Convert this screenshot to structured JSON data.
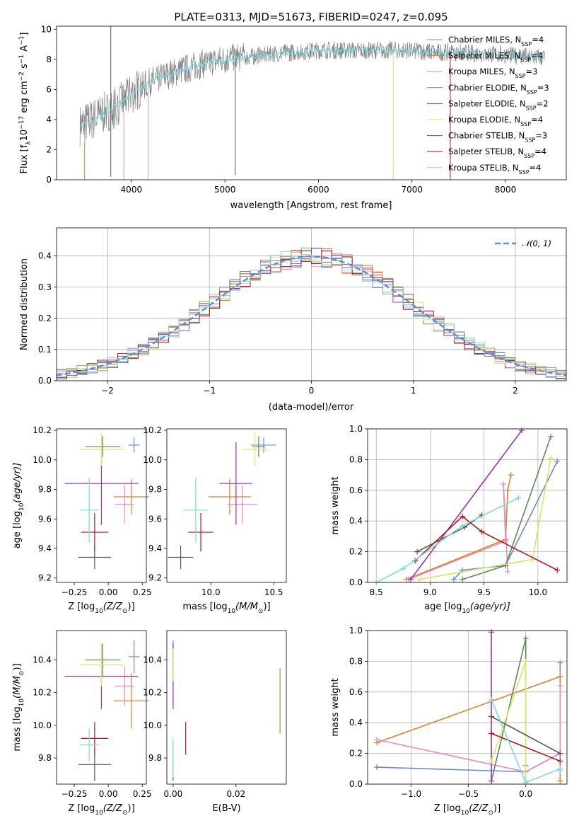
{
  "title": "PLATE=0313, MJD=51673, FIBERID=0247, z=0.095",
  "colors": {
    "series": [
      "#6a8bd6",
      "#e07f2c",
      "#e88bb8",
      "#5a8a5a",
      "#9a2fb0",
      "#d4e85a",
      "#555555",
      "#b01a1a",
      "#7fd9e0"
    ],
    "spectrum": "#808080",
    "gauss": "#5f8ed6",
    "grid": "#b0b0b0"
  },
  "legend_top": [
    {
      "label": "Chabrier MILES, N",
      "sub": "SSP",
      "suffix": "=4"
    },
    {
      "label": "Salpeter MILES, N",
      "sub": "SSP",
      "suffix": "=4"
    },
    {
      "label": "Kroupa MILES, N",
      "sub": "SSP",
      "suffix": "=3"
    },
    {
      "label": "Chabrier ELODIE, N",
      "sub": "SSP",
      "suffix": "=3"
    },
    {
      "label": "Salpeter ELODIE, N",
      "sub": "SSP",
      "suffix": "=2"
    },
    {
      "label": "Kroupa ELODIE, N",
      "sub": "SSP",
      "suffix": "=4"
    },
    {
      "label": "Chabrier STELIB, N",
      "sub": "SSP",
      "suffix": "=3"
    },
    {
      "label": "Salpeter STELIB, N",
      "sub": "SSP",
      "suffix": "=4"
    },
    {
      "label": "Kroupa STELIB, N",
      "sub": "SSP",
      "suffix": "=4"
    }
  ],
  "legend_mid": "𝒩(0, 1)",
  "chart_data": [
    {
      "id": "spectrum",
      "type": "line",
      "xlabel": "wavelength [Angstrom, rest frame]",
      "ylabel_parts": [
        "Flux [f",
        "λ",
        "10",
        "−17",
        " erg cm",
        "−2",
        " s",
        "−1",
        " A",
        "−1",
        "]"
      ],
      "xlim": [
        3200,
        8650
      ],
      "ylim": [
        0,
        10.2
      ],
      "xticks": [
        4000,
        5000,
        6000,
        7000,
        8000
      ],
      "yticks": [
        0,
        2,
        4,
        6,
        8,
        10
      ],
      "continuum_x": [
        3450,
        3550,
        3700,
        3850,
        4000,
        4200,
        4400,
        4700,
        5000,
        5300,
        5600,
        6000,
        6400,
        6800,
        7200,
        7600,
        8000,
        8400
      ],
      "continuum_y": [
        3.6,
        3.9,
        4.4,
        4.9,
        5.7,
        6.5,
        7.0,
        7.6,
        8.0,
        8.2,
        8.4,
        8.6,
        8.6,
        8.6,
        8.5,
        8.4,
        8.3,
        8.1
      ]
    },
    {
      "id": "residuals",
      "type": "histogram",
      "xlabel": "(data-model)/error",
      "ylabel": "Normed distribution",
      "xlim": [
        -2.5,
        2.5
      ],
      "ylim": [
        0,
        0.49
      ],
      "xticks": [
        -2,
        -1,
        0,
        1,
        2
      ],
      "yticks": [
        0.0,
        0.1,
        0.2,
        0.3,
        0.4
      ],
      "bin_width": 0.1,
      "series": "normal(0,1) with ±0.04 scatter"
    },
    {
      "id": "age_vs_Z",
      "type": "errorbar",
      "xlabel_parts": [
        "Z [log",
        "10",
        "(Z/Z",
        "⊙",
        ")]"
      ],
      "ylabel_parts": [
        "age  [log",
        "10",
        "(age/yr)]"
      ],
      "xlim": [
        -0.38,
        0.28
      ],
      "ylim": [
        9.17,
        10.21
      ],
      "xticks": [
        -0.25,
        0.0,
        0.25
      ],
      "yticks": [
        9.2,
        9.4,
        9.6,
        9.8,
        10.0,
        10.2
      ],
      "points": [
        {
          "c": 0,
          "x": 0.19,
          "xe": 0.04,
          "y": 10.1,
          "ye": 0.05
        },
        {
          "c": 1,
          "x": 0.17,
          "xe": 0.13,
          "y": 9.75,
          "ye": 0.12
        },
        {
          "c": 2,
          "x": 0.12,
          "xe": 0.07,
          "y": 9.7,
          "ye": 0.13
        },
        {
          "c": 3,
          "x": -0.04,
          "xe": 0.13,
          "y": 10.09,
          "ye": 0.07
        },
        {
          "c": 4,
          "x": -0.05,
          "xe": 0.27,
          "y": 9.84,
          "ye": 0.28
        },
        {
          "c": 5,
          "x": -0.05,
          "xe": 0.16,
          "y": 10.07,
          "ye": 0.11
        },
        {
          "c": 6,
          "x": -0.1,
          "xe": 0.12,
          "y": 9.34,
          "ye": 0.08
        },
        {
          "c": 7,
          "x": -0.1,
          "xe": 0.1,
          "y": 9.51,
          "ye": 0.13
        },
        {
          "c": 8,
          "x": -0.14,
          "xe": 0.07,
          "y": 9.66,
          "ye": 0.22
        }
      ]
    },
    {
      "id": "age_vs_mass",
      "type": "errorbar",
      "xlabel_parts": [
        "mass [log",
        "10",
        "(M/M",
        "⊙",
        ")]"
      ],
      "xlim": [
        9.65,
        10.6
      ],
      "ylim": [
        9.17,
        10.21
      ],
      "xticks": [
        10.0,
        10.5
      ],
      "yticks": [
        9.2,
        9.4,
        9.6,
        9.8,
        10.0,
        10.2
      ],
      "points": [
        {
          "c": 0,
          "x": 10.42,
          "xe": 0.1,
          "y": 10.1,
          "ye": 0.05
        },
        {
          "c": 1,
          "x": 10.15,
          "xe": 0.17,
          "y": 9.75,
          "ye": 0.12
        },
        {
          "c": 2,
          "x": 10.25,
          "xe": 0.12,
          "y": 9.7,
          "ye": 0.13
        },
        {
          "c": 3,
          "x": 10.38,
          "xe": 0.05,
          "y": 10.09,
          "ye": 0.07
        },
        {
          "c": 4,
          "x": 10.2,
          "xe": 0.13,
          "y": 9.84,
          "ye": 0.28
        },
        {
          "c": 5,
          "x": 10.35,
          "xe": 0.1,
          "y": 10.07,
          "ye": 0.11
        },
        {
          "c": 6,
          "x": 9.76,
          "xe": 0.1,
          "y": 9.34,
          "ye": 0.08
        },
        {
          "c": 7,
          "x": 9.92,
          "xe": 0.1,
          "y": 9.51,
          "ye": 0.13
        },
        {
          "c": 8,
          "x": 9.88,
          "xe": 0.1,
          "y": 9.66,
          "ye": 0.22
        }
      ]
    },
    {
      "id": "weight_vs_age",
      "type": "line",
      "xlabel_parts": [
        "age  [log",
        "10",
        "(age/yr)]"
      ],
      "ylabel": "mass weight",
      "xlim": [
        8.42,
        10.27
      ],
      "ylim": [
        0,
        1
      ],
      "xticks": [
        8.5,
        9.0,
        9.5,
        10.0
      ],
      "yticks": [
        0.0,
        0.2,
        0.4,
        0.6,
        0.8,
        1.0
      ],
      "series": [
        {
          "c": 0,
          "x": [
            9.22,
            9.3,
            9.7,
            10.18
          ],
          "y": [
            0.02,
            0.08,
            0.11,
            0.79
          ]
        },
        {
          "c": 1,
          "x": [
            8.78,
            9.7,
            9.72,
            9.75
          ],
          "y": [
            0.02,
            0.28,
            0.6,
            0.7
          ]
        },
        {
          "c": 2,
          "x": [
            8.8,
            9.7,
            9.68,
            9.72
          ],
          "y": [
            0.02,
            0.27,
            0.64,
            0.07
          ]
        },
        {
          "c": 3,
          "x": [
            9.3,
            9.7,
            10.12
          ],
          "y": [
            0.02,
            0.11,
            0.95
          ]
        },
        {
          "c": 4,
          "x": [
            8.82,
            9.85
          ],
          "y": [
            0.02,
            0.99
          ]
        },
        {
          "c": 5,
          "x": [
            8.9,
            9.95,
            10.12
          ],
          "y": [
            0.02,
            0.15,
            0.81
          ]
        },
        {
          "c": 6,
          "x": [
            8.88,
            9.32,
            9.48
          ],
          "y": [
            0.2,
            0.36,
            0.44
          ]
        },
        {
          "c": 7,
          "x": [
            8.86,
            9.3,
            9.48,
            10.18
          ],
          "y": [
            0.14,
            0.43,
            0.33,
            0.08
          ]
        },
        {
          "c": 8,
          "x": [
            8.5,
            8.75,
            9.3,
            9.82
          ],
          "y": [
            0.0,
            0.09,
            0.37,
            0.55
          ]
        }
      ]
    },
    {
      "id": "mass_vs_Z",
      "type": "errorbar",
      "xlabel_parts": [
        "Z [log",
        "10",
        "(Z/Z",
        "⊙",
        ")]"
      ],
      "ylabel_parts": [
        "mass [log",
        "10",
        "(M/M",
        "⊙",
        ")]"
      ],
      "xlim": [
        -0.38,
        0.28
      ],
      "ylim": [
        9.64,
        10.58
      ],
      "xticks": [
        -0.25,
        0.0,
        0.25
      ],
      "yticks": [
        9.8,
        10.0,
        10.2,
        10.4
      ],
      "points": [
        {
          "c": 0,
          "x": 0.19,
          "xe": 0.04,
          "y": 10.42,
          "ye": 0.1
        },
        {
          "c": 1,
          "x": 0.17,
          "xe": 0.13,
          "y": 10.15,
          "ye": 0.17
        },
        {
          "c": 2,
          "x": 0.12,
          "xe": 0.07,
          "y": 10.24,
          "ye": 0.12
        },
        {
          "c": 3,
          "x": -0.04,
          "xe": 0.13,
          "y": 10.4,
          "ye": 0.1
        },
        {
          "c": 4,
          "x": -0.05,
          "xe": 0.27,
          "y": 10.3,
          "ye": 0.2
        },
        {
          "c": 5,
          "x": -0.05,
          "xe": 0.16,
          "y": 10.37,
          "ye": 0.13
        },
        {
          "c": 6,
          "x": -0.1,
          "xe": 0.12,
          "y": 9.76,
          "ye": 0.1
        },
        {
          "c": 7,
          "x": -0.1,
          "xe": 0.1,
          "y": 9.92,
          "ye": 0.1
        },
        {
          "c": 8,
          "x": -0.14,
          "xe": 0.07,
          "y": 9.88,
          "ye": 0.1
        }
      ]
    },
    {
      "id": "mass_vs_ebv",
      "type": "errorbar",
      "xlabel": "E(B-V)",
      "xlim": [
        -0.002,
        0.036
      ],
      "ylim": [
        9.64,
        10.58
      ],
      "xticks": [
        0.0,
        0.02
      ],
      "yticks": [
        9.8,
        10.0,
        10.2,
        10.4
      ],
      "points": [
        {
          "c": 0,
          "x": 0.0,
          "xe": 0.0,
          "y": 10.42,
          "ye": 0.1
        },
        {
          "c": 1,
          "x": 0.034,
          "xe": 0.0,
          "y": 10.15,
          "ye": 0.2
        },
        {
          "c": 2,
          "x": 0.0,
          "xe": 0.0,
          "y": 10.24,
          "ye": 0.12
        },
        {
          "c": 3,
          "x": 0.0,
          "xe": 0.0,
          "y": 10.4,
          "ye": 0.1
        },
        {
          "c": 4,
          "x": 0.0,
          "xe": 0.0,
          "y": 10.3,
          "ye": 0.2
        },
        {
          "c": 5,
          "x": 0.0,
          "xe": 0.0,
          "y": 10.37,
          "ye": 0.1
        },
        {
          "c": 6,
          "x": 0.0,
          "xe": 0.0,
          "y": 9.76,
          "ye": 0.1
        },
        {
          "c": 7,
          "x": 0.004,
          "xe": 0.0,
          "y": 9.92,
          "ye": 0.1
        },
        {
          "c": 8,
          "x": 0.0,
          "xe": 0.0,
          "y": 9.8,
          "ye": 0.12
        }
      ]
    },
    {
      "id": "weight_vs_Z",
      "type": "line",
      "xlabel_parts": [
        "Z [log",
        "10",
        "(Z/Z",
        "⊙",
        ")]"
      ],
      "ylabel": "mass weight",
      "xlim": [
        -1.38,
        0.36
      ],
      "ylim": [
        0,
        1
      ],
      "xticks": [
        -1.0,
        -0.5,
        0.0
      ],
      "yticks": [
        0.0,
        0.2,
        0.4,
        0.6,
        0.8,
        1.0
      ],
      "series": [
        {
          "c": 0,
          "x": [
            -1.3,
            0.0,
            0.3,
            0.3
          ],
          "y": [
            0.11,
            0.08,
            0.2,
            0.79
          ]
        },
        {
          "c": 1,
          "x": [
            -1.3,
            0.3,
            0.3
          ],
          "y": [
            0.27,
            0.7,
            0.02
          ]
        },
        {
          "c": 2,
          "x": [
            -1.3,
            0.0,
            0.3,
            0.3
          ],
          "y": [
            0.29,
            0.08,
            0.2,
            0.64
          ]
        },
        {
          "c": 3,
          "x": [
            -0.3,
            0.0,
            0.0
          ],
          "y": [
            0.02,
            0.95,
            0.12
          ]
        },
        {
          "c": 4,
          "x": [
            -0.3,
            -0.3
          ],
          "y": [
            0.02,
            0.99
          ]
        },
        {
          "c": 5,
          "x": [
            -0.3,
            0.0,
            0.0
          ],
          "y": [
            0.15,
            0.8,
            0.02
          ]
        },
        {
          "c": 6,
          "x": [
            -0.3,
            0.3
          ],
          "y": [
            0.44,
            0.2
          ]
        },
        {
          "c": 7,
          "x": [
            -0.3,
            0.3
          ],
          "y": [
            0.33,
            0.15
          ]
        },
        {
          "c": 8,
          "x": [
            -0.3,
            0.0,
            0.3,
            0.3
          ],
          "y": [
            0.55,
            0.01,
            0.1,
            0.09
          ]
        }
      ]
    }
  ]
}
